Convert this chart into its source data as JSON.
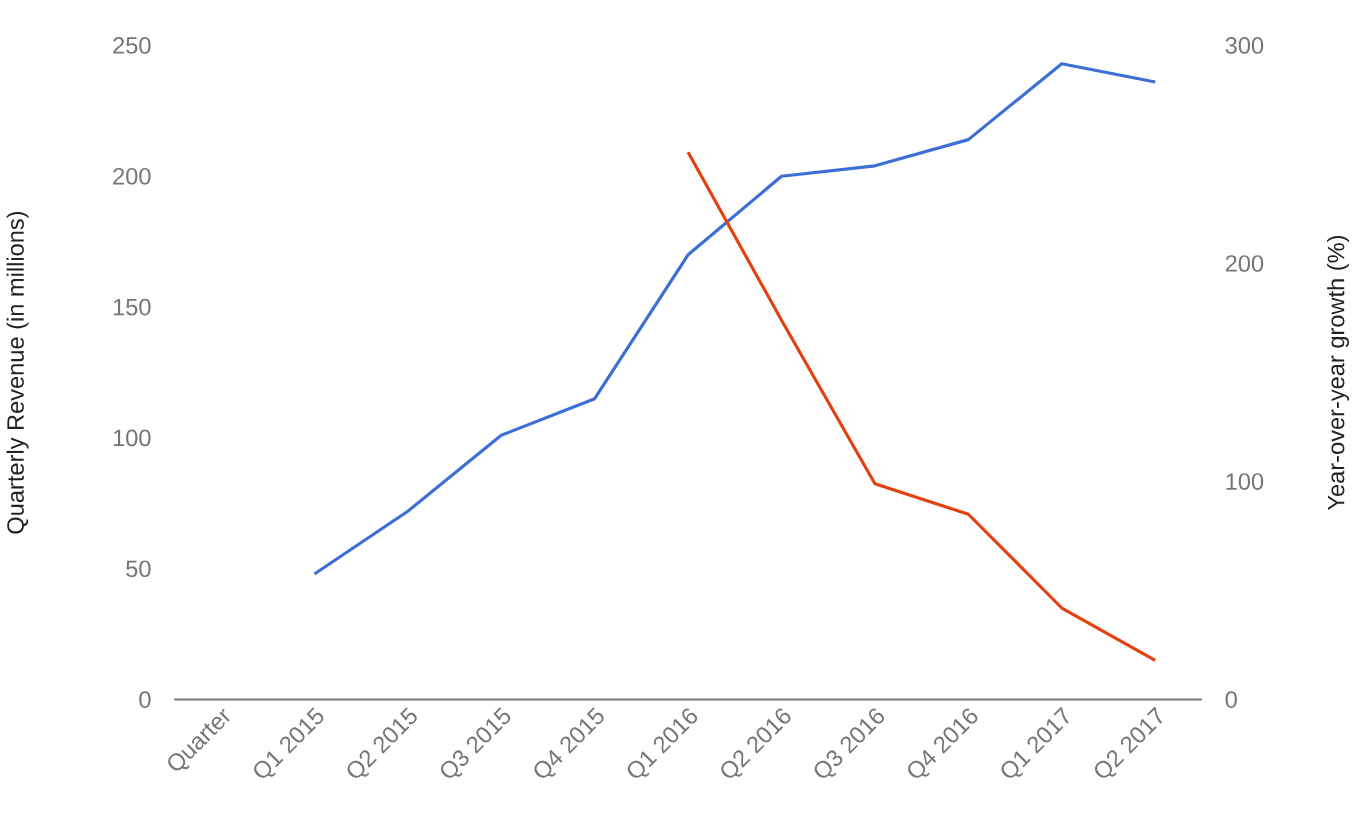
{
  "chart_data": {
    "type": "line",
    "ylabel": "Quarterly Revenue (in millions)",
    "y2label": "Year-over-year growth (%)",
    "categories": [
      "Quarter",
      "Q1 2015",
      "Q2 2015",
      "Q3 2015",
      "Q4 2015",
      "Q1 2016",
      "Q2 2016",
      "Q3 2016",
      "Q4 2016",
      "Q1 2017",
      "Q2 2017"
    ],
    "series": [
      {
        "color": "#3c6fd6",
        "values": [
          null,
          48,
          72,
          101,
          115,
          170,
          200,
          204,
          214,
          243,
          236
        ]
      },
      {
        "color": "#e5400f",
        "axis": "y2",
        "values": [
          null,
          null,
          null,
          null,
          null,
          251,
          174,
          99,
          85,
          42,
          18
        ]
      }
    ],
    "ylim": [
      0,
      250
    ],
    "yticks": [
      0,
      50,
      100,
      150,
      200,
      250
    ],
    "y2lim": [
      0,
      300
    ],
    "y2ticks": [
      0,
      100,
      200,
      300
    ],
    "grid": false
  }
}
